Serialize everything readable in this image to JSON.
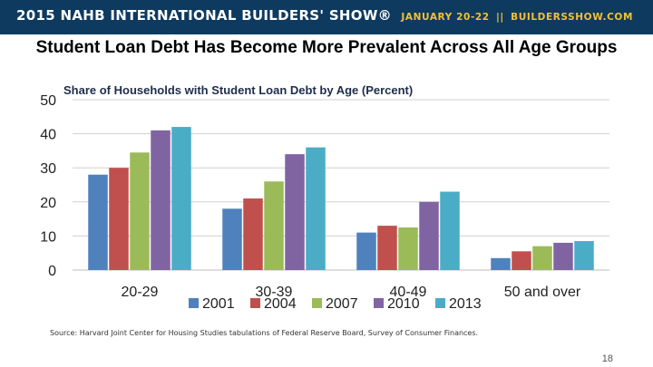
{
  "header": {
    "event_title": "2015 NAHB INTERNATIONAL BUILDERS' SHOW®",
    "dates": "JANUARY 20-22",
    "separator": "||",
    "website": "BUILDERSSHOW.COM"
  },
  "slide": {
    "title": "Student Loan Debt Has Become More Prevalent Across All Age Groups",
    "source": "Source: Harvard Joint Center for Housing Studies tabulations of Federal Reserve Board, Survey of Consumer Finances.",
    "page_number": "18"
  },
  "chart_data": {
    "type": "bar",
    "title": "Share of Households with Student Loan Debt by Age (Percent)",
    "categories": [
      "20-29",
      "30-39",
      "40-49",
      "50 and over"
    ],
    "series": [
      {
        "name": "2001",
        "color": "#4f81bd",
        "values": [
          28,
          18,
          11,
          3.5
        ]
      },
      {
        "name": "2004",
        "color": "#c0504d",
        "values": [
          30,
          21,
          13,
          5.5
        ]
      },
      {
        "name": "2007",
        "color": "#9bbb59",
        "values": [
          34.5,
          26,
          12.5,
          7
        ]
      },
      {
        "name": "2010",
        "color": "#8064a2",
        "values": [
          41,
          34,
          20,
          8
        ]
      },
      {
        "name": "2013",
        "color": "#4bacc6",
        "values": [
          42,
          36,
          23,
          8.5
        ]
      }
    ],
    "ylim": [
      0,
      50
    ],
    "yticks": [
      0,
      10,
      20,
      30,
      40,
      50
    ],
    "grid": true,
    "legend_position": "bottom"
  }
}
